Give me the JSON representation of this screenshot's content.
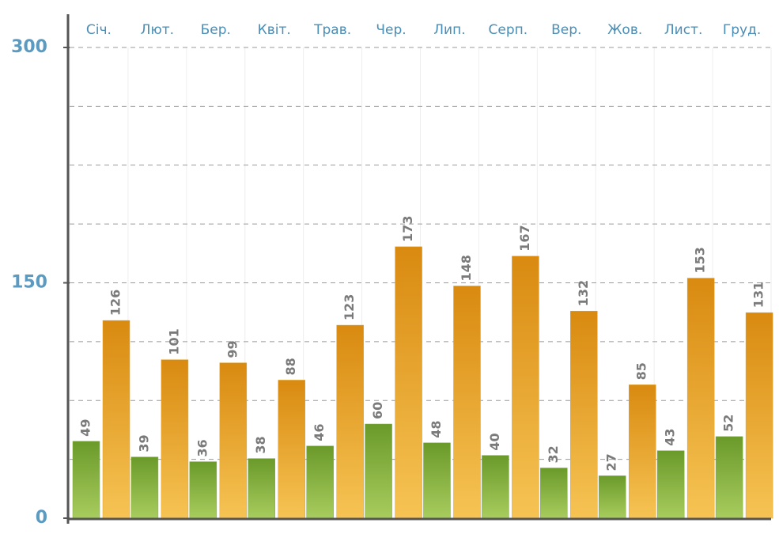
{
  "chart_data": {
    "type": "bar",
    "categories": [
      "Січ.",
      "Лют.",
      "Бер.",
      "Квіт.",
      "Трав.",
      "Чер.",
      "Лип.",
      "Серп.",
      "Вер.",
      "Жов.",
      "Лист.",
      "Груд."
    ],
    "series": [
      {
        "color": "#7fae38",
        "values": [
          49,
          39,
          36,
          38,
          46,
          60,
          48,
          40,
          32,
          27,
          43,
          52
        ]
      },
      {
        "color": "#e6a226",
        "values": [
          126,
          101,
          99,
          88,
          123,
          173,
          148,
          167,
          132,
          85,
          153,
          131
        ]
      }
    ],
    "ylim": [
      0,
      300
    ],
    "yticks": [
      0,
      150,
      300
    ],
    "minor_yticks": [
      37.5,
      75,
      112.5,
      187.5,
      225,
      262.5
    ],
    "grid": true
  }
}
